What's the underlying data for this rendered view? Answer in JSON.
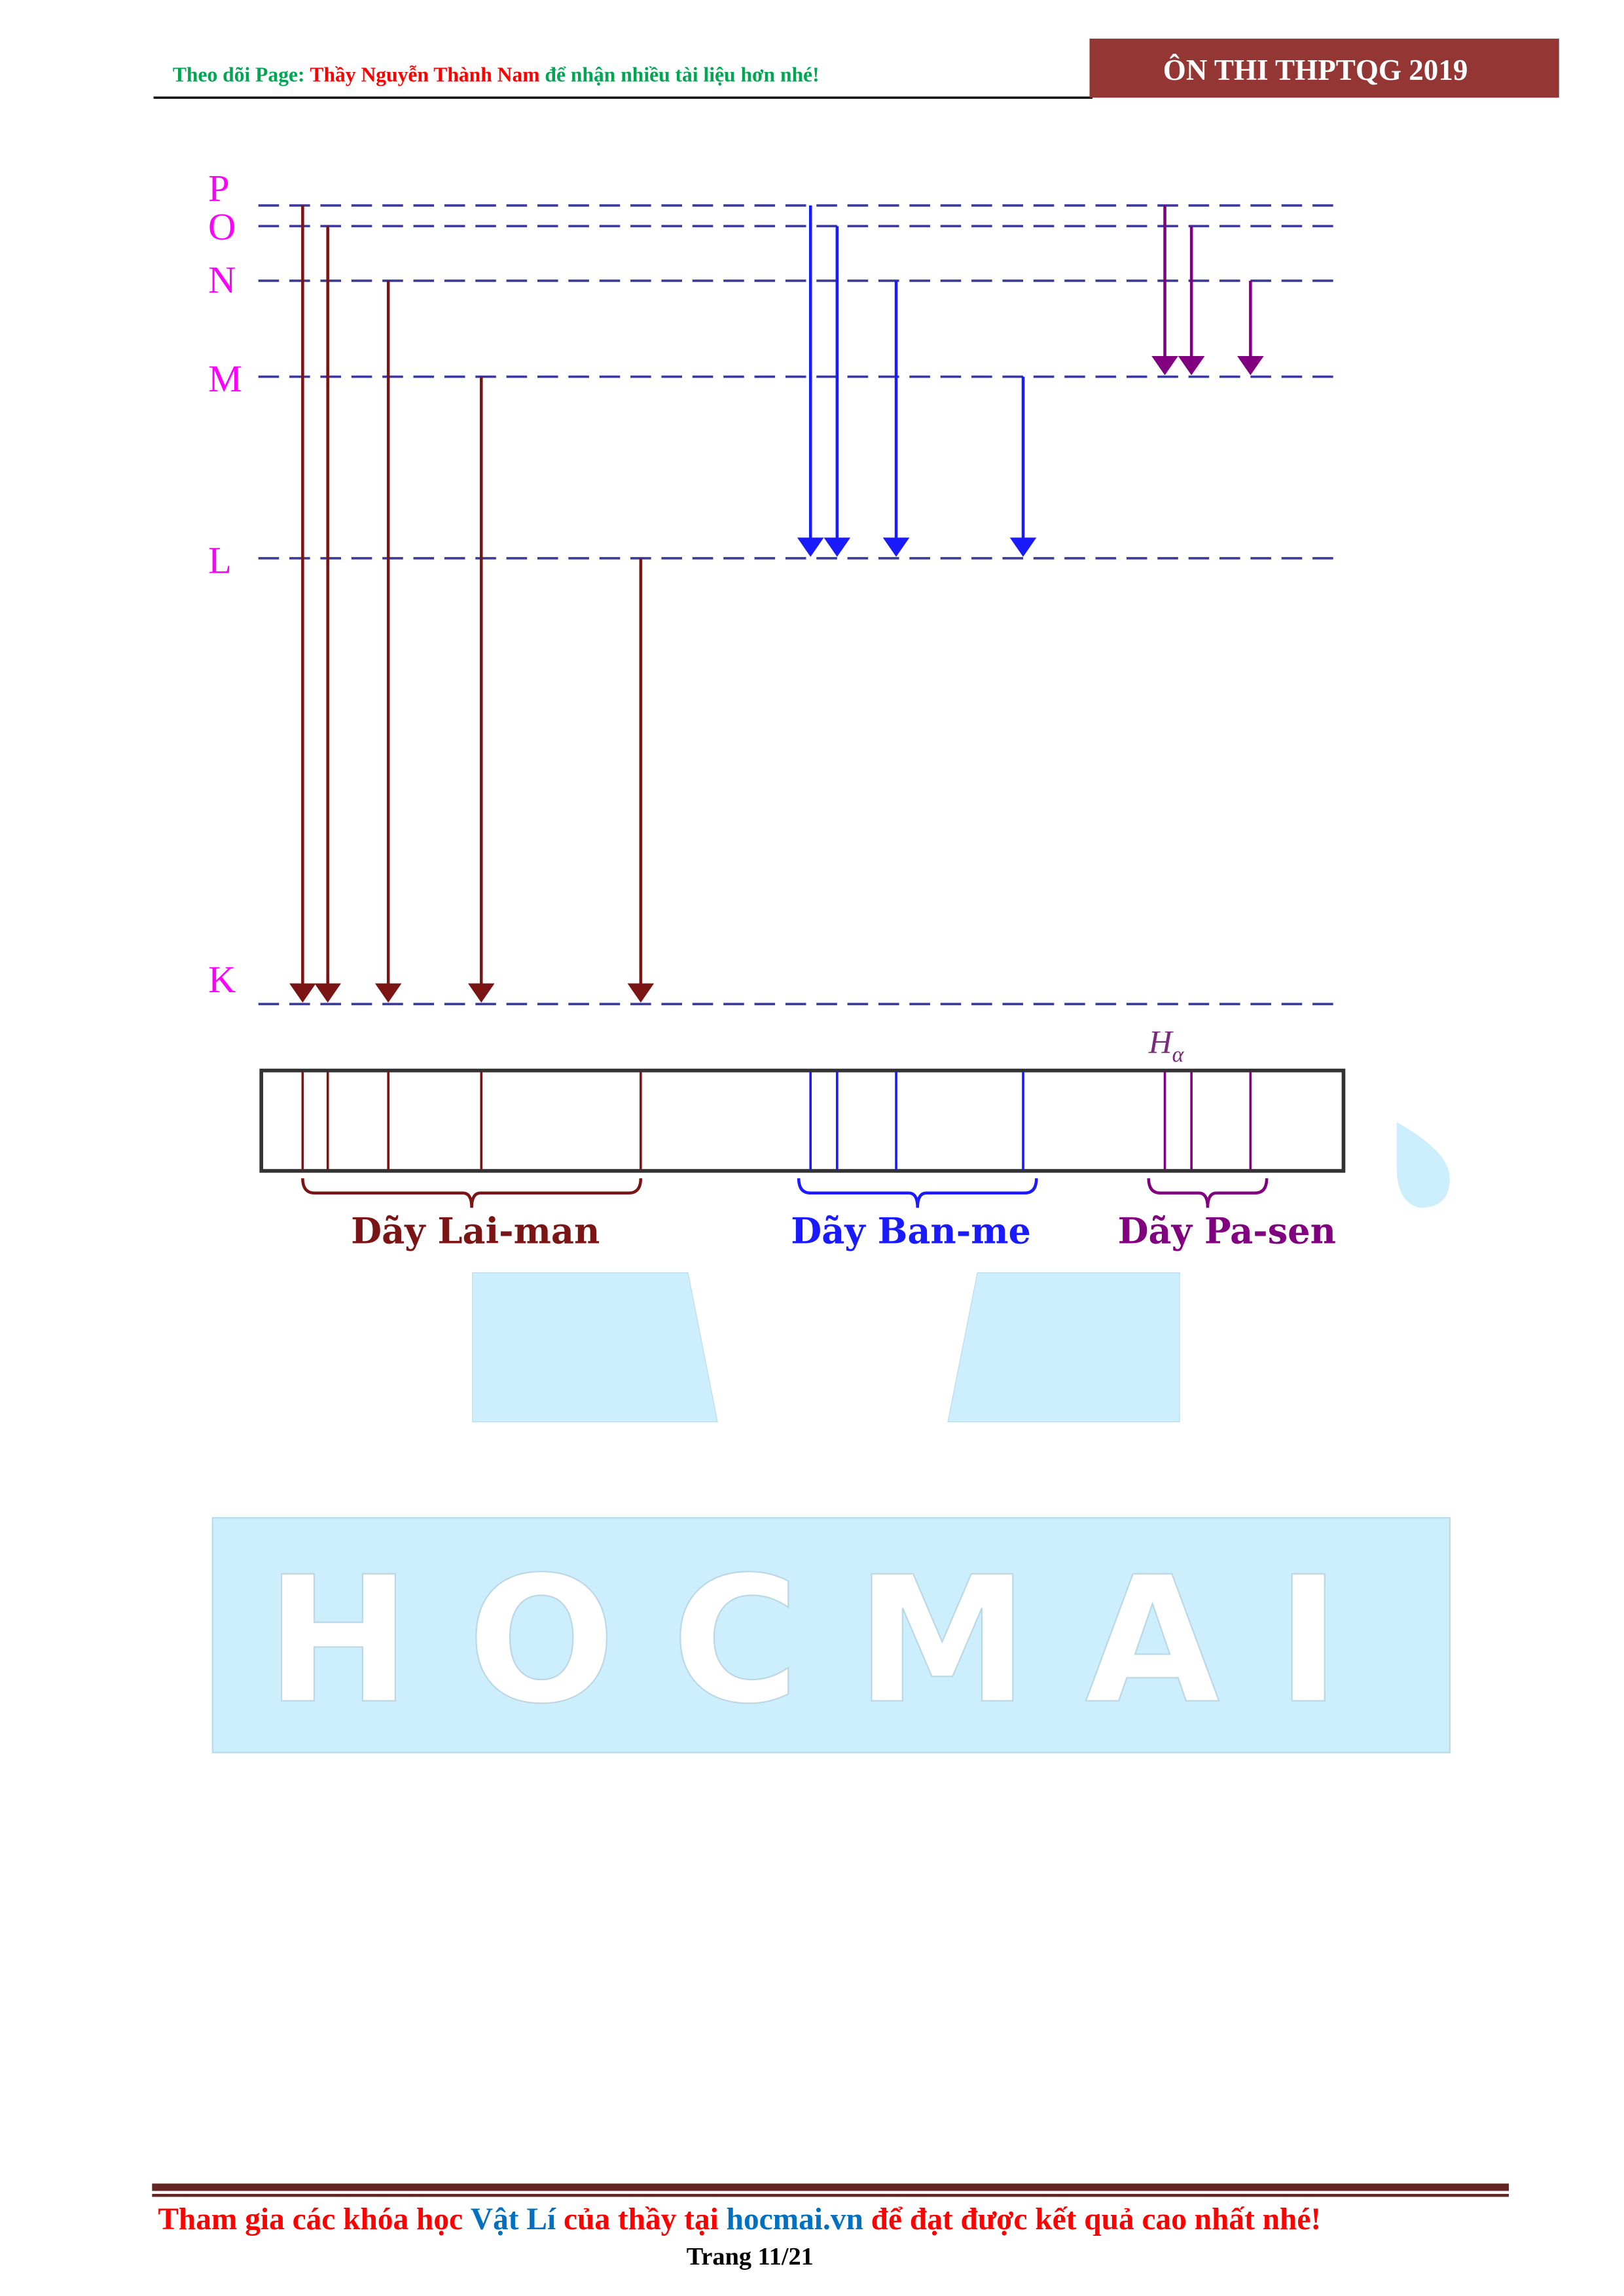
{
  "header": {
    "left_prefix": "Theo dõi Page: ",
    "left_name": "Thầy Nguyễn Thành Nam",
    "left_suffix": " để nhận nhiều tài liệu hơn nhé!",
    "badge": "ÔN THI THPTQG 2019",
    "badge_color": "#943634"
  },
  "diagram": {
    "levels": [
      "P",
      "O",
      "N",
      "M",
      "L",
      "K"
    ],
    "level_label_color": "#ff00ff",
    "series": [
      {
        "label": "Dãy Lai-man",
        "color": "#7b1414",
        "to": "K",
        "from": [
          "P",
          "O",
          "N",
          "M",
          "L"
        ]
      },
      {
        "label": "Dãy Ban-me",
        "color": "#1a1aff",
        "to": "L",
        "from": [
          "P",
          "O",
          "N",
          "M"
        ]
      },
      {
        "label": "Dãy Pa-sen",
        "color": "#800080",
        "to": "M",
        "from": [
          "P",
          "O",
          "N"
        ]
      }
    ],
    "h_alpha_symbol": "H",
    "h_alpha_subscript": "α"
  },
  "watermark": {
    "text": "HOCMAI",
    "color": "#cdeefc"
  },
  "footer": {
    "part1": "Tham gia các khóa học ",
    "part2": "Vật Lí",
    "part3": " của thầy tại ",
    "part4": "hocmai.vn",
    "part5": " để đạt được kết quả cao nhất nhé!",
    "page": "Trang 11/21",
    "rule_color": "#632523"
  }
}
